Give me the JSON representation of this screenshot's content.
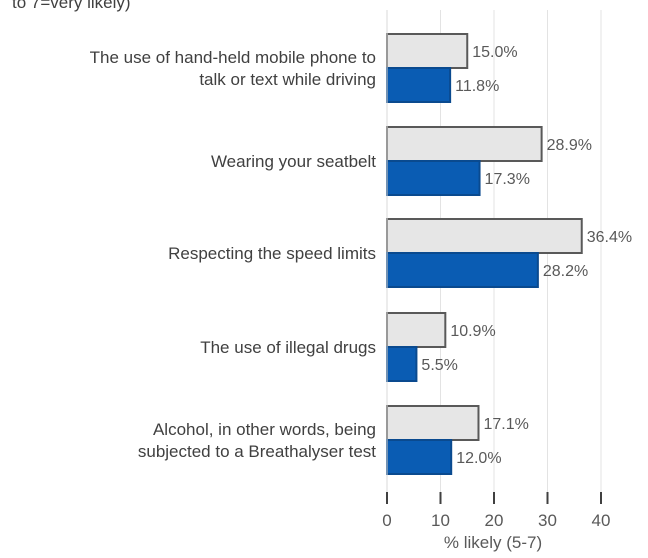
{
  "chart_data": {
    "type": "bar",
    "orientation": "horizontal",
    "title": "to 7=very likely)",
    "categories": [
      [
        "The use of hand-held mobile phone to",
        "talk or text while driving"
      ],
      [
        "Wearing your seatbelt"
      ],
      [
        "Respecting the speed limits"
      ],
      [
        "The use of illegal drugs"
      ],
      [
        "Alcohol, in other words, being",
        "subjected to a Breathalyser test"
      ]
    ],
    "series": [
      {
        "color": "#e6e6e6",
        "stroke": "#595959",
        "values": [
          15.0,
          28.9,
          36.4,
          10.9,
          17.1
        ]
      },
      {
        "color": "#0a5cb3",
        "stroke": "#0a4a8f",
        "values": [
          11.8,
          17.3,
          28.2,
          5.5,
          12.0
        ]
      }
    ],
    "value_labels": [
      [
        "15.0%",
        "28.9%",
        "36.4%",
        "10.9%",
        "17.1%"
      ],
      [
        "11.8%",
        "17.3%",
        "28.2%",
        "5.5%",
        "12.0%"
      ]
    ],
    "xlabel": "% likely (5-7)",
    "xlim": [
      0,
      40
    ],
    "xticks": [
      0,
      10,
      20,
      30,
      40
    ],
    "grid": true
  }
}
